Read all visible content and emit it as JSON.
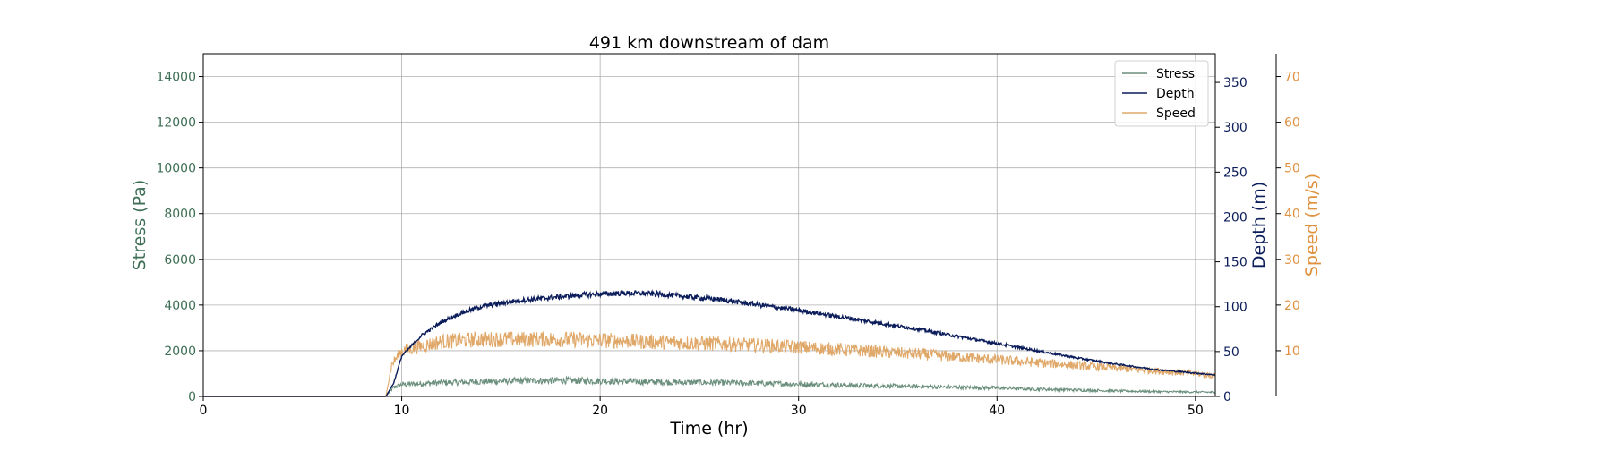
{
  "chart_data": {
    "type": "line",
    "title": "491 km downstream of dam",
    "xlabel": "Time (hr)",
    "x_axis": {
      "lim": [
        0,
        51
      ],
      "ticks": [
        0,
        10,
        20,
        30,
        40,
        50
      ]
    },
    "grid": true,
    "legend_position": "top-right",
    "axes": {
      "stress": {
        "label": "Stress (Pa)",
        "lim": [
          0,
          15000
        ],
        "ticks": [
          0,
          2000,
          4000,
          6000,
          8000,
          10000,
          12000,
          14000
        ],
        "color": "#3e6e55"
      },
      "depth": {
        "label": "Depth (m)",
        "lim": [
          0,
          382
        ],
        "ticks": [
          0,
          50,
          100,
          150,
          200,
          250,
          300,
          350
        ],
        "color": "#0b1c5a"
      },
      "speed": {
        "label": "Speed (m/s)",
        "lim": [
          0,
          75
        ],
        "ticks": [
          10,
          20,
          30,
          40,
          50,
          60,
          70
        ],
        "color": "#e0913f"
      }
    },
    "series": [
      {
        "name": "Stress",
        "axis": "stress",
        "color": "#6b8f7d",
        "x": [
          0,
          9.2,
          9.6,
          10,
          12,
          14,
          16,
          18,
          20,
          22,
          24,
          26,
          28,
          30,
          32,
          34,
          36,
          38,
          40,
          42,
          44,
          46,
          48,
          50,
          51
        ],
        "values": [
          0,
          0,
          400,
          520,
          600,
          650,
          680,
          700,
          680,
          640,
          620,
          600,
          570,
          540,
          500,
          460,
          430,
          400,
          370,
          320,
          280,
          240,
          210,
          190,
          180
        ]
      },
      {
        "name": "Depth",
        "axis": "depth",
        "color": "#0b1c5a",
        "x": [
          0,
          9.2,
          9.6,
          10,
          11,
          12,
          13,
          14,
          15,
          16,
          17,
          18,
          19,
          20,
          21,
          22,
          23,
          24,
          26,
          28,
          30,
          32,
          34,
          36,
          38,
          40,
          42,
          44,
          46,
          48,
          50,
          51
        ],
        "values": [
          0,
          0,
          15,
          45,
          68,
          83,
          93,
          100,
          104,
          107,
          109,
          111,
          113,
          114,
          115,
          115,
          114,
          112,
          108,
          102,
          96,
          89,
          82,
          75,
          67,
          59,
          51,
          43,
          36,
          30,
          26,
          24
        ]
      },
      {
        "name": "Speed",
        "axis": "speed",
        "color": "#e0a868",
        "x": [
          0,
          9.2,
          9.5,
          10,
          11,
          12,
          14,
          16,
          18,
          20,
          22,
          24,
          26,
          28,
          30,
          32,
          34,
          36,
          38,
          40,
          42,
          44,
          46,
          48,
          50,
          51
        ],
        "values": [
          0,
          0,
          7,
          10,
          11,
          12,
          12.5,
          12.5,
          12.5,
          12.3,
          12,
          11.8,
          11.5,
          11.2,
          10.8,
          10.3,
          9.8,
          9.3,
          8.7,
          8,
          7.4,
          6.8,
          6.2,
          5.6,
          5,
          4.5
        ]
      }
    ]
  }
}
